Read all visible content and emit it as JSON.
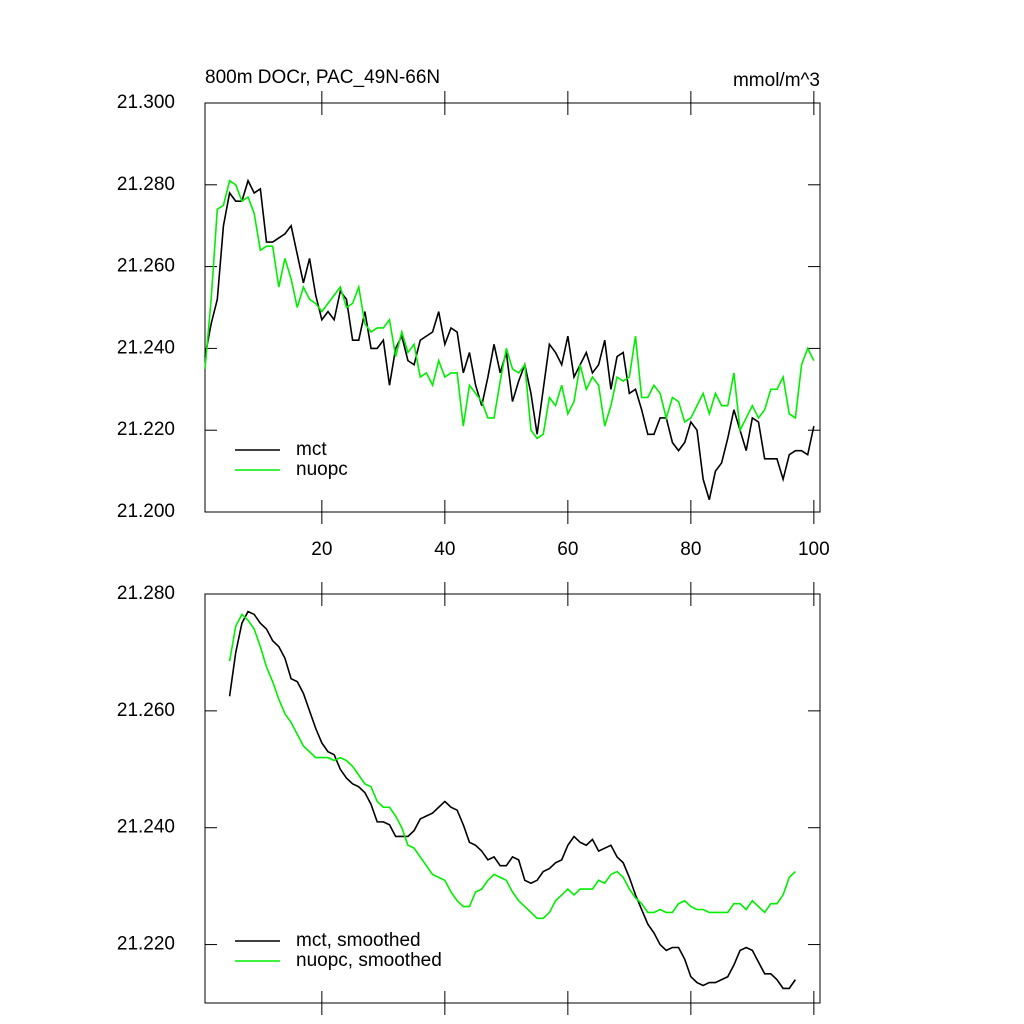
{
  "chart_data": [
    {
      "type": "line",
      "title": "800m DOCr, PAC_49N-66N",
      "units": "mmol/m^3",
      "x": [
        1,
        2,
        3,
        4,
        5,
        6,
        7,
        8,
        9,
        10,
        11,
        12,
        13,
        14,
        15,
        16,
        17,
        18,
        19,
        20,
        21,
        22,
        23,
        24,
        25,
        26,
        27,
        28,
        29,
        30,
        31,
        32,
        33,
        34,
        35,
        36,
        37,
        38,
        39,
        40,
        41,
        42,
        43,
        44,
        45,
        46,
        47,
        48,
        49,
        50,
        51,
        52,
        53,
        54,
        55,
        56,
        57,
        58,
        59,
        60,
        61,
        62,
        63,
        64,
        65,
        66,
        67,
        68,
        69,
        70,
        71,
        72,
        73,
        74,
        75,
        76,
        77,
        78,
        79,
        80,
        81,
        82,
        83,
        84,
        85,
        86,
        87,
        88,
        89,
        90,
        91,
        92,
        93,
        94,
        95,
        96,
        97,
        98,
        99,
        100
      ],
      "series": [
        {
          "name": "mct",
          "color": "#000000",
          "values": [
            21.238,
            21.246,
            21.252,
            21.27,
            21.278,
            21.276,
            21.276,
            21.281,
            21.278,
            21.279,
            21.266,
            21.266,
            21.267,
            21.268,
            21.27,
            21.263,
            21.256,
            21.262,
            21.253,
            21.247,
            21.249,
            21.247,
            21.254,
            21.252,
            21.242,
            21.242,
            21.249,
            21.24,
            21.24,
            21.242,
            21.231,
            21.24,
            21.243,
            21.237,
            21.236,
            21.242,
            21.243,
            21.244,
            21.249,
            21.241,
            21.245,
            21.244,
            21.234,
            21.239,
            21.231,
            21.226,
            21.233,
            21.241,
            21.234,
            21.239,
            21.227,
            21.232,
            21.236,
            21.229,
            21.219,
            21.23,
            21.241,
            21.239,
            21.236,
            21.243,
            21.233,
            21.236,
            21.239,
            21.234,
            21.236,
            21.242,
            21.23,
            21.238,
            21.239,
            21.229,
            21.23,
            21.225,
            21.219,
            21.219,
            21.223,
            21.223,
            21.217,
            21.215,
            21.217,
            21.222,
            21.22,
            21.208,
            21.203,
            21.21,
            21.212,
            21.218,
            21.225,
            21.22,
            21.215,
            21.223,
            21.222,
            21.213,
            21.213,
            21.213,
            21.208,
            21.214,
            21.215,
            21.215,
            21.214,
            21.221
          ]
        },
        {
          "name": "nuopc",
          "color": "#00ee00",
          "values": [
            21.235,
            21.252,
            21.274,
            21.275,
            21.281,
            21.28,
            21.276,
            21.277,
            21.273,
            21.264,
            21.265,
            21.265,
            21.255,
            21.262,
            21.257,
            21.25,
            21.255,
            21.252,
            21.251,
            21.249,
            21.251,
            21.253,
            21.255,
            21.25,
            21.251,
            21.255,
            21.246,
            21.244,
            21.245,
            21.245,
            21.247,
            21.238,
            21.244,
            21.239,
            21.241,
            21.233,
            21.234,
            21.231,
            21.237,
            21.233,
            21.234,
            21.234,
            21.221,
            21.231,
            21.229,
            21.227,
            21.223,
            21.223,
            21.232,
            21.24,
            21.235,
            21.234,
            21.236,
            21.22,
            21.218,
            21.219,
            21.228,
            21.226,
            21.231,
            21.224,
            21.227,
            21.236,
            21.23,
            21.233,
            21.231,
            21.221,
            21.226,
            21.233,
            21.232,
            21.233,
            21.243,
            21.228,
            21.228,
            21.231,
            21.229,
            21.223,
            21.228,
            21.227,
            21.222,
            21.223,
            21.226,
            21.229,
            21.224,
            21.229,
            21.226,
            21.226,
            21.234,
            21.22,
            21.223,
            21.226,
            21.223,
            21.225,
            21.23,
            21.23,
            21.233,
            21.224,
            21.223,
            21.236,
            21.24,
            21.237
          ]
        }
      ],
      "xlim": [
        1,
        101
      ],
      "xticks": [
        20,
        40,
        60,
        80,
        100
      ],
      "xtick_labels": true,
      "ylim": [
        21.2,
        21.3
      ],
      "yticks": [
        {
          "value": 21.2,
          "label": "21.200"
        },
        {
          "value": 21.22,
          "label": "21.220"
        },
        {
          "value": 21.24,
          "label": "21.240"
        },
        {
          "value": 21.26,
          "label": "21.260"
        },
        {
          "value": 21.28,
          "label": "21.280"
        },
        {
          "value": 21.3,
          "label": "21.300"
        }
      ],
      "legend": "lower left"
    },
    {
      "type": "line",
      "x": [
        5,
        6,
        7,
        8,
        9,
        10,
        11,
        12,
        13,
        14,
        15,
        16,
        17,
        18,
        19,
        20,
        21,
        22,
        23,
        24,
        25,
        26,
        27,
        28,
        29,
        30,
        31,
        32,
        33,
        34,
        35,
        36,
        37,
        38,
        39,
        40,
        41,
        42,
        43,
        44,
        45,
        46,
        47,
        48,
        49,
        50,
        51,
        52,
        53,
        54,
        55,
        56,
        57,
        58,
        59,
        60,
        61,
        62,
        63,
        64,
        65,
        66,
        67,
        68,
        69,
        70,
        71,
        72,
        73,
        74,
        75,
        76,
        77,
        78,
        79,
        80,
        81,
        82,
        83,
        84,
        85,
        86,
        87,
        88,
        89,
        90,
        91,
        92,
        93,
        94,
        95,
        96,
        97
      ],
      "series": [
        {
          "name": "mct, smoothed",
          "color": "#000000",
          "values": [
            21.2625,
            21.27,
            21.275,
            21.277,
            21.2765,
            21.275,
            21.274,
            21.272,
            21.271,
            21.269,
            21.2655,
            21.265,
            21.263,
            21.26,
            21.257,
            21.2545,
            21.253,
            21.2525,
            21.25,
            21.2485,
            21.2475,
            21.247,
            21.246,
            21.244,
            21.241,
            21.241,
            21.2405,
            21.2385,
            21.2385,
            21.2385,
            21.2395,
            21.2415,
            21.242,
            21.2425,
            21.2435,
            21.2445,
            21.2435,
            21.243,
            21.2405,
            21.2375,
            21.237,
            21.236,
            21.2345,
            21.235,
            21.2335,
            21.2335,
            21.235,
            21.2345,
            21.231,
            21.2305,
            21.231,
            21.2325,
            21.233,
            21.234,
            21.2345,
            21.237,
            21.2385,
            21.2375,
            21.237,
            21.238,
            21.236,
            21.2365,
            21.237,
            21.235,
            21.234,
            21.2315,
            21.2285,
            21.226,
            21.2235,
            21.222,
            21.22,
            21.219,
            21.2195,
            21.2195,
            21.2175,
            21.2145,
            21.2135,
            21.213,
            21.2135,
            21.2135,
            21.214,
            21.2145,
            21.2165,
            21.219,
            21.2195,
            21.219,
            21.217,
            21.215,
            21.215,
            21.214,
            21.2125,
            21.2125,
            21.214
          ]
        },
        {
          "name": "nuopc, smoothed",
          "color": "#00ee00",
          "values": [
            21.2685,
            21.2745,
            21.2765,
            21.2755,
            21.274,
            21.271,
            21.2675,
            21.265,
            21.262,
            21.2595,
            21.258,
            21.256,
            21.254,
            21.253,
            21.252,
            21.252,
            21.252,
            21.2515,
            21.252,
            21.2515,
            21.2505,
            21.249,
            21.2475,
            21.247,
            21.2445,
            21.2435,
            21.2435,
            21.242,
            21.24,
            21.237,
            21.2365,
            21.235,
            21.2335,
            21.232,
            21.2315,
            21.231,
            21.229,
            21.2275,
            21.2265,
            21.2265,
            21.229,
            21.2295,
            21.231,
            21.232,
            21.2315,
            21.231,
            21.229,
            21.2275,
            21.2265,
            21.2255,
            21.2245,
            21.2245,
            21.2255,
            21.2275,
            21.2285,
            21.2295,
            21.2285,
            21.2295,
            21.2295,
            21.2295,
            21.231,
            21.2305,
            21.232,
            21.2325,
            21.2315,
            21.2295,
            21.228,
            21.227,
            21.2255,
            21.2255,
            21.226,
            21.2255,
            21.2255,
            21.227,
            21.2275,
            21.2265,
            21.226,
            21.226,
            21.2255,
            21.2255,
            21.2255,
            21.2255,
            21.227,
            21.227,
            21.226,
            21.2275,
            21.2265,
            21.2255,
            21.227,
            21.227,
            21.2285,
            21.2315,
            21.2325
          ]
        }
      ],
      "xlim": [
        1,
        101
      ],
      "xticks": [
        20,
        40,
        60,
        80,
        100
      ],
      "xtick_labels": false,
      "ylim": [
        21.21,
        21.28
      ],
      "yticks": [
        {
          "value": 21.22,
          "label": "21.220"
        },
        {
          "value": 21.24,
          "label": "21.240"
        },
        {
          "value": 21.26,
          "label": "21.260"
        },
        {
          "value": 21.28,
          "label": "21.280"
        }
      ],
      "legend": "lower left"
    }
  ]
}
